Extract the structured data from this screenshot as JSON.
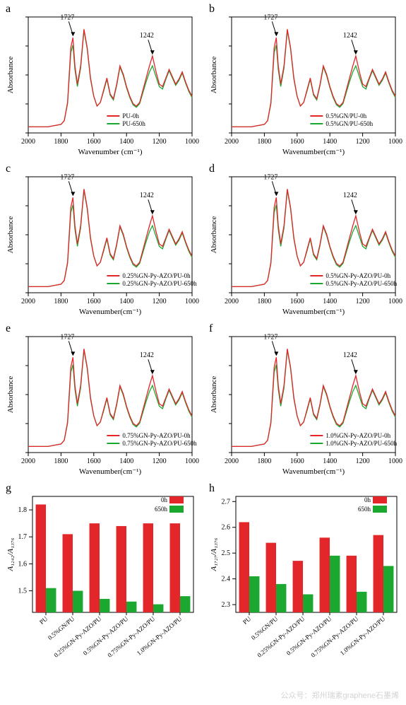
{
  "colors": {
    "series_0h": "#e2262a",
    "series_650h": "#1aa831",
    "axis": "#000000",
    "background": "#ffffff"
  },
  "spectra_common": {
    "type": "line",
    "xlim": [
      2000,
      1000
    ],
    "xticks": [
      2000,
      1800,
      1600,
      1400,
      1200,
      1000
    ],
    "xlabel_a": "Wavenumber (cm⁻¹)",
    "xlabel_b": "Wavenumber(cm⁻¹)",
    "ylabel": "Absorbance",
    "annotations": [
      {
        "x": 1727,
        "label": "1727"
      },
      {
        "x": 1242,
        "label": "1242"
      }
    ],
    "series_x": [
      2000,
      1960,
      1920,
      1880,
      1840,
      1800,
      1780,
      1760,
      1740,
      1727,
      1715,
      1700,
      1680,
      1660,
      1640,
      1620,
      1600,
      1580,
      1560,
      1540,
      1520,
      1500,
      1480,
      1460,
      1440,
      1420,
      1400,
      1380,
      1360,
      1340,
      1320,
      1300,
      1280,
      1260,
      1242,
      1220,
      1200,
      1180,
      1160,
      1140,
      1120,
      1100,
      1080,
      1060,
      1040,
      1020,
      1000
    ],
    "series_y_0h": [
      0.05,
      0.05,
      0.05,
      0.05,
      0.06,
      0.07,
      0.1,
      0.25,
      0.7,
      0.78,
      0.55,
      0.4,
      0.55,
      0.85,
      0.7,
      0.45,
      0.3,
      0.22,
      0.25,
      0.35,
      0.45,
      0.32,
      0.28,
      0.4,
      0.55,
      0.48,
      0.38,
      0.3,
      0.24,
      0.22,
      0.25,
      0.35,
      0.45,
      0.55,
      0.63,
      0.5,
      0.4,
      0.38,
      0.45,
      0.52,
      0.46,
      0.4,
      0.44,
      0.5,
      0.42,
      0.35,
      0.3
    ],
    "series_y_650h": [
      0.05,
      0.05,
      0.05,
      0.05,
      0.06,
      0.07,
      0.1,
      0.24,
      0.66,
      0.72,
      0.52,
      0.38,
      0.53,
      0.84,
      0.69,
      0.44,
      0.3,
      0.22,
      0.25,
      0.34,
      0.44,
      0.31,
      0.27,
      0.39,
      0.54,
      0.47,
      0.37,
      0.29,
      0.23,
      0.21,
      0.24,
      0.33,
      0.42,
      0.5,
      0.55,
      0.46,
      0.38,
      0.36,
      0.44,
      0.51,
      0.45,
      0.39,
      0.43,
      0.49,
      0.41,
      0.34,
      0.29
    ]
  },
  "spectra_panels": [
    {
      "id": "a",
      "legend": [
        "PU-0h",
        "PU-650h"
      ],
      "xlabel_key": "xlabel_a"
    },
    {
      "id": "b",
      "legend": [
        "0.5%GN/PU-0h",
        "0.5%GN/PU-650h"
      ],
      "xlabel_key": "xlabel_b"
    },
    {
      "id": "c",
      "legend": [
        "0.25%GN-Py-AZO/PU-0h",
        "0.25%GN-Py-AZO/PU-650h"
      ],
      "xlabel_key": "xlabel_b"
    },
    {
      "id": "d",
      "legend": [
        "0.5%GN-Py-AZO/PU-0h",
        "0.5%GN-Py-AZO/PU-650h"
      ],
      "xlabel_key": "xlabel_b"
    },
    {
      "id": "e",
      "legend": [
        "0.75%GN-Py-AZO/PU-0h",
        "0.75%GN-Py-AZO/PU-650h"
      ],
      "xlabel_key": "xlabel_b"
    },
    {
      "id": "f",
      "legend": [
        "1.0%GN-Py-AZO/PU-0h",
        "1.0%GN-Py-AZO/PU-650h"
      ],
      "xlabel_key": "xlabel_b"
    }
  ],
  "bar_common": {
    "type": "bar",
    "categories": [
      "PU",
      "0.5%GN/PU",
      "0.25%GN-Py-AZO/PU",
      "0.5%GN-Py-AZO/PU",
      "0.75%GN-Py-AZO/PU",
      "1.0%GN-Py-AZO/PU"
    ],
    "legend": [
      "0h",
      "650h"
    ],
    "bar_width": 0.38
  },
  "bar_panels": {
    "g": {
      "id": "g",
      "ylabel": "A₁₂₄₂/A₁₃₇₆",
      "ylim": [
        1.42,
        1.85
      ],
      "yticks": [
        1.5,
        1.6,
        1.7,
        1.8
      ],
      "values_0h": [
        1.82,
        1.71,
        1.75,
        1.74,
        1.75,
        1.75
      ],
      "values_650h": [
        1.51,
        1.5,
        1.47,
        1.46,
        1.45,
        1.48
      ]
    },
    "h": {
      "id": "h",
      "ylabel": "A₁₇₂₇/A₁₃₇₆",
      "ylim": [
        2.27,
        2.72
      ],
      "yticks": [
        2.3,
        2.4,
        2.5,
        2.6,
        2.7
      ],
      "values_0h": [
        2.62,
        2.54,
        2.47,
        2.56,
        2.49,
        2.57
      ],
      "values_650h": [
        2.41,
        2.38,
        2.34,
        2.49,
        2.35,
        2.45
      ]
    }
  },
  "watermark": "公众号：郑州瑞素graphene石墨烯"
}
